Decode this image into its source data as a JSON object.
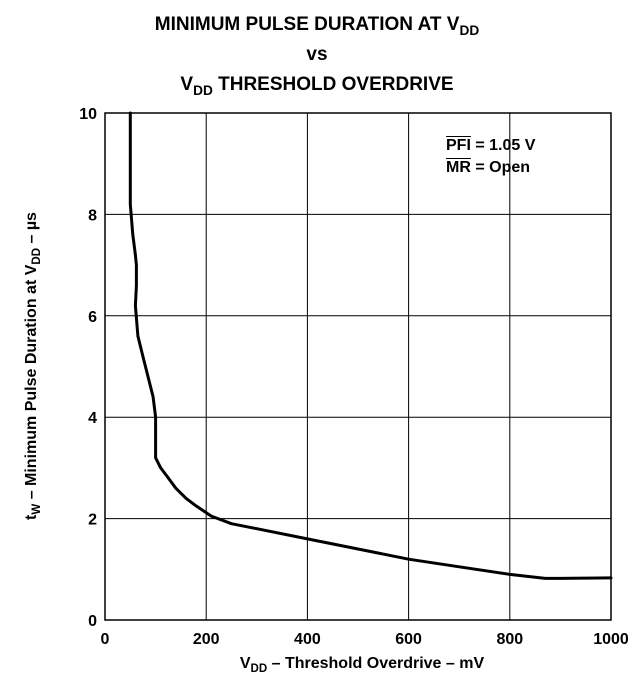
{
  "chart_data": {
    "type": "line",
    "title": {
      "line1_pre": "MINIMUM PULSE DURATION AT V",
      "line1_sub": "DD",
      "line2": "vs",
      "line3_pre": "V",
      "line3_sub": "DD",
      "line3_post": " THRESHOLD OVERDRIVE"
    },
    "xlabel": {
      "pre": "V",
      "sub": "DD",
      "post": " – Threshold Overdrive – mV"
    },
    "ylabel": {
      "pre": "t",
      "sub": "W",
      "mid": " – Minimum Pulse Duration at V",
      "sub2": "DD",
      "post": " – µs"
    },
    "xlim": [
      0,
      1000
    ],
    "ylim": [
      0,
      10
    ],
    "x_ticks": [
      "0",
      "200",
      "400",
      "600",
      "800",
      "1000"
    ],
    "y_ticks": [
      "0",
      "2",
      "4",
      "6",
      "8",
      "10"
    ],
    "grid": true,
    "annotations": {
      "pfi_label": "PFI",
      "pfi_value": " = 1.05 V",
      "mr_label": "MR",
      "mr_value": " = Open"
    },
    "series": [
      {
        "points": [
          [
            50,
            10
          ],
          [
            50,
            9
          ],
          [
            50,
            8.2
          ],
          [
            55,
            7.6
          ],
          [
            60,
            7.2
          ],
          [
            62,
            7.0
          ],
          [
            62,
            6.6
          ],
          [
            60,
            6.2
          ],
          [
            65,
            5.6
          ],
          [
            75,
            5.2
          ],
          [
            85,
            4.8
          ],
          [
            95,
            4.4
          ],
          [
            100,
            4.0
          ],
          [
            100,
            3.6
          ],
          [
            100,
            3.2
          ],
          [
            110,
            3.0
          ],
          [
            125,
            2.8
          ],
          [
            140,
            2.6
          ],
          [
            160,
            2.4
          ],
          [
            180,
            2.25
          ],
          [
            210,
            2.05
          ],
          [
            250,
            1.9
          ],
          [
            300,
            1.8
          ],
          [
            400,
            1.6
          ],
          [
            500,
            1.4
          ],
          [
            600,
            1.2
          ],
          [
            700,
            1.05
          ],
          [
            800,
            0.9
          ],
          [
            870,
            0.82
          ],
          [
            900,
            0.82
          ],
          [
            1000,
            0.83
          ]
        ]
      }
    ],
    "line_color": "#000000"
  }
}
